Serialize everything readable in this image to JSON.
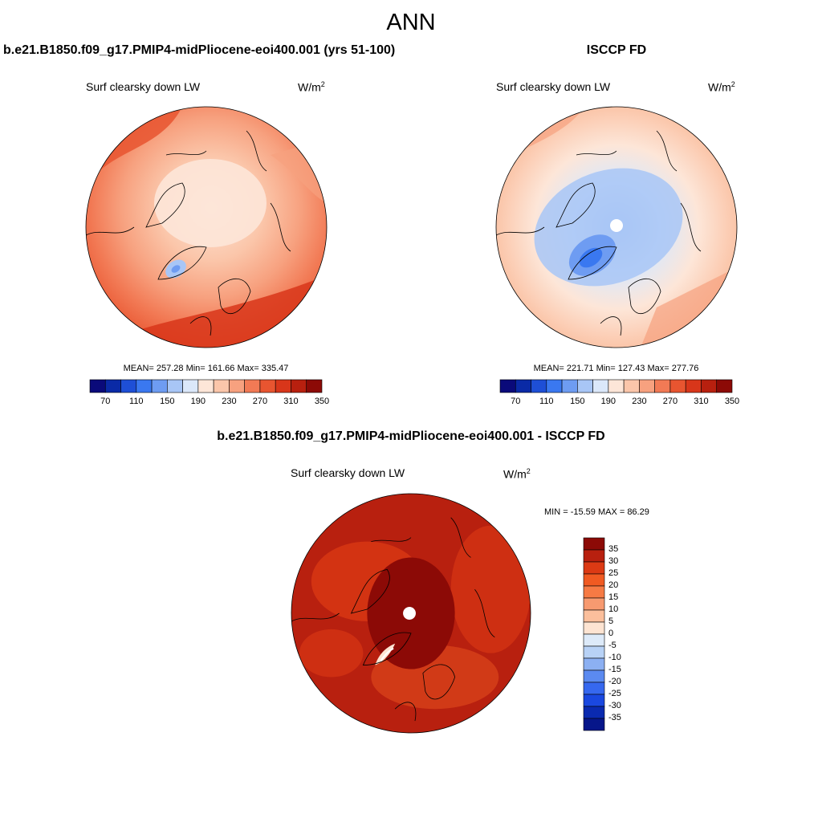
{
  "figure_title": "ANN",
  "panels": [
    {
      "title": "b.e21.B1850.f09_g17.PMIP4-midPliocene-eoi400.001 (yrs 51-100)",
      "variable": "Surf clearsky down LW",
      "units_base": "W/m",
      "units_exp": "2",
      "mean": "257.28",
      "min": "161.66",
      "max": "335.47",
      "stats_text": "MEAN= 257.28  Min= 161.66  Max= 335.47"
    },
    {
      "title": "ISCCP FD",
      "variable": "Surf clearsky down LW",
      "units_base": "W/m",
      "units_exp": "2",
      "mean": "221.71",
      "min": "127.43",
      "max": "277.76",
      "stats_text": "MEAN= 221.71  Min= 127.43  Max= 277.76"
    },
    {
      "title": "b.e21.B1850.f09_g17.PMIP4-midPliocene-eoi400.001 - ISCCP FD",
      "variable": "Surf clearsky down LW",
      "units_base": "W/m",
      "units_exp": "2",
      "min": "-15.59",
      "max": "86.29",
      "stats_text": "MIN = -15.59 MAX =  86.29"
    }
  ],
  "abs_colorbar": {
    "colors": [
      "#0a0a7a",
      "#0a2aa6",
      "#1e4fd6",
      "#3a78f0",
      "#6e9cf2",
      "#a8c6f6",
      "#dbe8fa",
      "#fde6d8",
      "#fbc6aa",
      "#f7a17f",
      "#f27a55",
      "#e85530",
      "#d8361a",
      "#b8200f",
      "#8c0a06"
    ],
    "tick_labels": [
      "70",
      "110",
      "150",
      "190",
      "230",
      "270",
      "310",
      "350"
    ]
  },
  "diff_colorbar": {
    "colors": [
      "#8c0a06",
      "#b8200f",
      "#dc3a14",
      "#f05a22",
      "#f67a44",
      "#f79a70",
      "#fbbf9c",
      "#fde4d2",
      "#ddeaf9",
      "#b8d2f6",
      "#8cb0f2",
      "#5b8af0",
      "#3668ef",
      "#1a48e0",
      "#0a2ab0",
      "#06168a"
    ],
    "tick_labels": [
      "35",
      "30",
      "25",
      "20",
      "15",
      "10",
      "5",
      "0",
      "-5",
      "-10",
      "-15",
      "-20",
      "-25",
      "-30",
      "-35"
    ]
  },
  "colors": {
    "land_outline": "#000000",
    "background": "#ffffff"
  }
}
